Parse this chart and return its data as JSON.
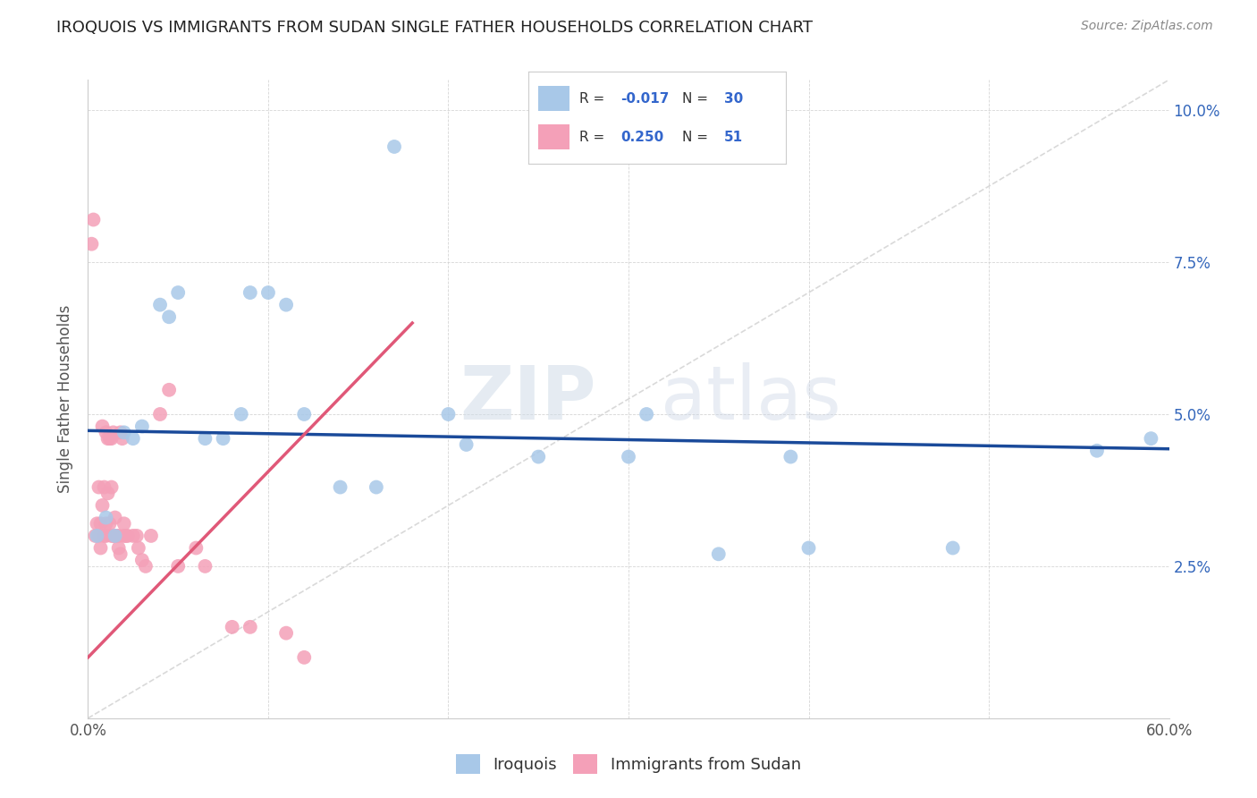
{
  "title": "IROQUOIS VS IMMIGRANTS FROM SUDAN SINGLE FATHER HOUSEHOLDS CORRELATION CHART",
  "source": "Source: ZipAtlas.com",
  "ylabel": "Single Father Households",
  "watermark": "ZIPatlas",
  "iroquois_color": "#a8c8e8",
  "sudan_color": "#f4a0b8",
  "iroquois_line_color": "#1a4a9a",
  "sudan_line_color": "#e05878",
  "diagonal_color": "#d0d0d0",
  "r_iroquois": -0.017,
  "n_iroquois": 30,
  "r_sudan": 0.25,
  "n_sudan": 51,
  "xlim": [
    0.0,
    0.6
  ],
  "ylim": [
    0.0,
    0.105
  ],
  "yticks": [
    0.0,
    0.025,
    0.05,
    0.075,
    0.1
  ],
  "ytick_labels": [
    "",
    "2.5%",
    "5.0%",
    "7.5%",
    "10.0%"
  ],
  "xticks": [
    0.0,
    0.1,
    0.2,
    0.3,
    0.4,
    0.5,
    0.6
  ],
  "xtick_labels": [
    "0.0%",
    "",
    "",
    "",
    "",
    "",
    "60.0%"
  ],
  "iroquois_x": [
    0.005,
    0.01,
    0.015,
    0.02,
    0.025,
    0.03,
    0.04,
    0.045,
    0.05,
    0.065,
    0.075,
    0.085,
    0.09,
    0.1,
    0.11,
    0.12,
    0.14,
    0.16,
    0.17,
    0.2,
    0.21,
    0.25,
    0.3,
    0.31,
    0.35,
    0.39,
    0.4,
    0.48,
    0.56,
    0.59
  ],
  "iroquois_y": [
    0.03,
    0.033,
    0.03,
    0.047,
    0.046,
    0.048,
    0.068,
    0.066,
    0.07,
    0.046,
    0.046,
    0.05,
    0.07,
    0.07,
    0.068,
    0.05,
    0.038,
    0.038,
    0.094,
    0.05,
    0.045,
    0.043,
    0.043,
    0.05,
    0.027,
    0.043,
    0.028,
    0.028,
    0.044,
    0.046
  ],
  "sudan_x": [
    0.002,
    0.003,
    0.004,
    0.005,
    0.006,
    0.006,
    0.007,
    0.007,
    0.008,
    0.008,
    0.009,
    0.009,
    0.01,
    0.01,
    0.01,
    0.011,
    0.011,
    0.012,
    0.012,
    0.013,
    0.013,
    0.013,
    0.014,
    0.014,
    0.015,
    0.015,
    0.016,
    0.017,
    0.017,
    0.018,
    0.018,
    0.019,
    0.02,
    0.02,
    0.021,
    0.022,
    0.025,
    0.027,
    0.028,
    0.03,
    0.032,
    0.035,
    0.04,
    0.045,
    0.05,
    0.06,
    0.065,
    0.08,
    0.09,
    0.11,
    0.12
  ],
  "sudan_y": [
    0.078,
    0.082,
    0.03,
    0.032,
    0.03,
    0.038,
    0.032,
    0.028,
    0.048,
    0.035,
    0.03,
    0.038,
    0.03,
    0.032,
    0.047,
    0.046,
    0.037,
    0.046,
    0.032,
    0.046,
    0.038,
    0.03,
    0.03,
    0.047,
    0.03,
    0.033,
    0.03,
    0.03,
    0.028,
    0.027,
    0.047,
    0.046,
    0.03,
    0.032,
    0.03,
    0.03,
    0.03,
    0.03,
    0.028,
    0.026,
    0.025,
    0.03,
    0.05,
    0.054,
    0.025,
    0.028,
    0.025,
    0.015,
    0.015,
    0.014,
    0.01
  ],
  "iroquois_line_x": [
    0.0,
    0.6
  ],
  "iroquois_line_y": [
    0.0473,
    0.0443
  ],
  "sudan_line_x": [
    0.0,
    0.18
  ],
  "sudan_line_y": [
    0.01,
    0.065
  ]
}
